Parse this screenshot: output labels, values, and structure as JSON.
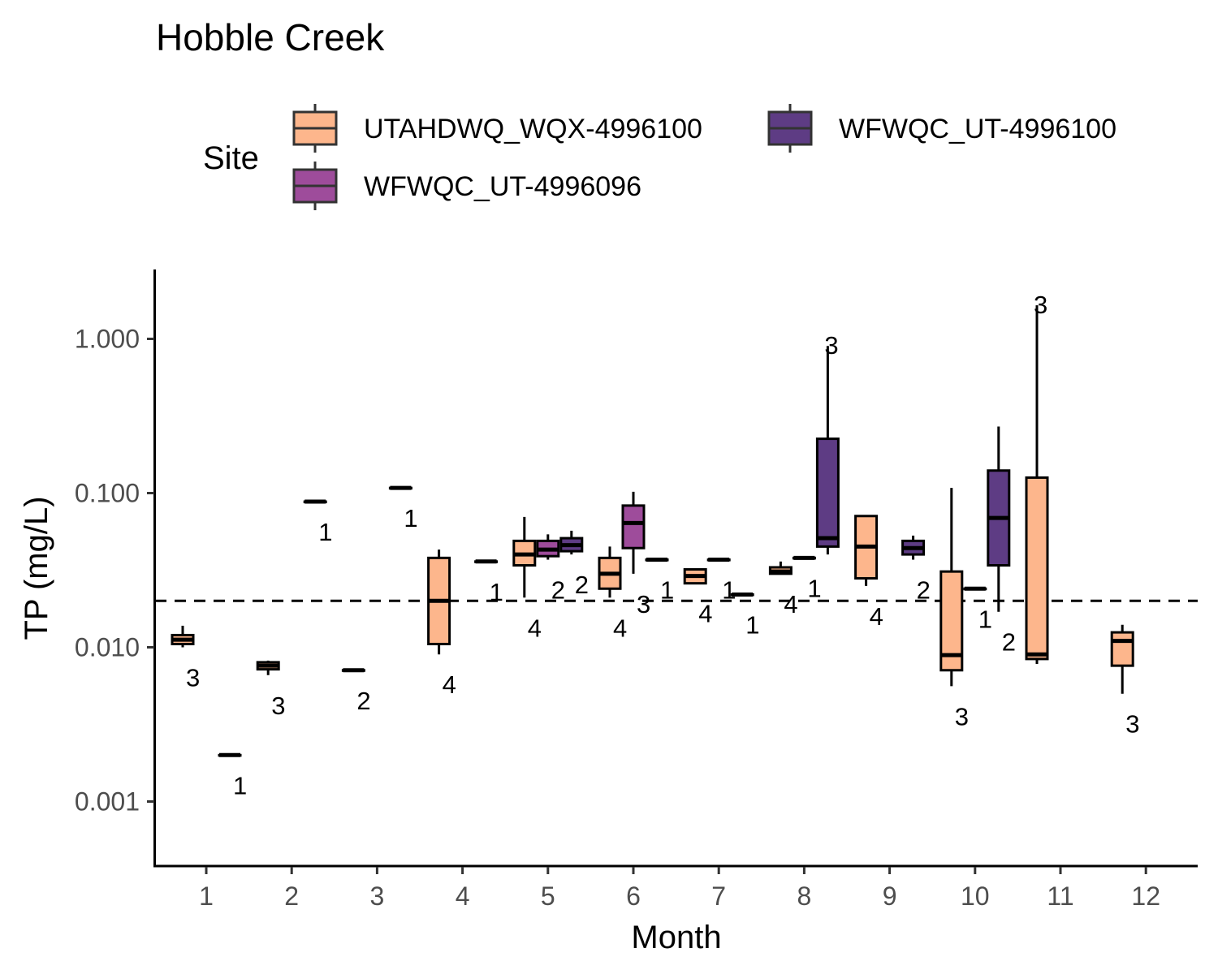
{
  "chart_data": {
    "type": "box",
    "title": "Hobble Creek",
    "xlabel": "Month",
    "ylabel": "TP (mg/L)",
    "y_scale": "log10",
    "ylim": [
      0.0004,
      2.8
    ],
    "x_categories": [
      "1",
      "2",
      "3",
      "4",
      "5",
      "6",
      "7",
      "8",
      "9",
      "10",
      "11",
      "12"
    ],
    "y_ticks": [
      0.001,
      0.01,
      0.1,
      1.0
    ],
    "y_tick_labels": [
      "0.001",
      "0.010",
      "0.100",
      "1.000"
    ],
    "reference_line": {
      "value": 0.02,
      "style": "dashed"
    },
    "legend": {
      "title": "Site",
      "placement": "top",
      "entries": [
        {
          "name": "UTAHDWQ_WQX-4996100",
          "color": "#FDB68C"
        },
        {
          "name": "WFWQC_UT-4996096",
          "color": "#9E4C9B"
        },
        {
          "name": "WFWQC_UT-4996100",
          "color": "#5E3C84"
        }
      ]
    },
    "boxes": [
      {
        "month": 1,
        "site": 0,
        "min": 0.01,
        "q1": 0.0105,
        "median": 0.0112,
        "q3": 0.012,
        "max": 0.0138,
        "n": "3"
      },
      {
        "month": 1,
        "site": 2,
        "min": 0.002,
        "q1": 0.002,
        "median": 0.002,
        "q3": 0.002,
        "max": 0.002,
        "n": "1"
      },
      {
        "month": 2,
        "site": 0,
        "min": 0.0066,
        "q1": 0.0072,
        "median": 0.0076,
        "q3": 0.008,
        "max": 0.0082,
        "n": "3"
      },
      {
        "month": 2,
        "site": 2,
        "min": 0.088,
        "q1": 0.088,
        "median": 0.088,
        "q3": 0.088,
        "max": 0.088,
        "n": "1"
      },
      {
        "month": 3,
        "site": 0,
        "min": 0.0071,
        "q1": 0.0071,
        "median": 0.0071,
        "q3": 0.0071,
        "max": 0.0071,
        "n": "2"
      },
      {
        "month": 3,
        "site": 2,
        "min": 0.108,
        "q1": 0.108,
        "median": 0.108,
        "q3": 0.108,
        "max": 0.108,
        "n": "1"
      },
      {
        "month": 4,
        "site": 0,
        "min": 0.009,
        "q1": 0.0105,
        "median": 0.02,
        "q3": 0.038,
        "max": 0.043,
        "n": "4"
      },
      {
        "month": 4,
        "site": 2,
        "min": 0.036,
        "q1": 0.036,
        "median": 0.036,
        "q3": 0.036,
        "max": 0.036,
        "n": "1"
      },
      {
        "month": 5,
        "site": 0,
        "min": 0.021,
        "q1": 0.034,
        "median": 0.04,
        "q3": 0.049,
        "max": 0.07,
        "n": "4"
      },
      {
        "month": 5,
        "site": 1,
        "min": 0.037,
        "q1": 0.039,
        "median": 0.043,
        "q3": 0.049,
        "max": 0.054,
        "n": "2"
      },
      {
        "month": 5,
        "site": 2,
        "min": 0.04,
        "q1": 0.042,
        "median": 0.046,
        "q3": 0.051,
        "max": 0.057,
        "n": "2"
      },
      {
        "month": 6,
        "site": 0,
        "min": 0.021,
        "q1": 0.024,
        "median": 0.03,
        "q3": 0.038,
        "max": 0.045,
        "n": "4"
      },
      {
        "month": 6,
        "site": 1,
        "min": 0.03,
        "q1": 0.044,
        "median": 0.064,
        "q3": 0.083,
        "max": 0.102,
        "n": "3"
      },
      {
        "month": 6,
        "site": 2,
        "min": 0.037,
        "q1": 0.037,
        "median": 0.037,
        "q3": 0.037,
        "max": 0.037,
        "n": "1"
      },
      {
        "month": 7,
        "site": 0,
        "min": 0.026,
        "q1": 0.026,
        "median": 0.029,
        "q3": 0.032,
        "max": 0.032,
        "n": "4"
      },
      {
        "month": 7,
        "site": 1,
        "min": 0.037,
        "q1": 0.037,
        "median": 0.037,
        "q3": 0.037,
        "max": 0.037,
        "n": "1"
      },
      {
        "month": 7,
        "site": 2,
        "min": 0.022,
        "q1": 0.022,
        "median": 0.022,
        "q3": 0.022,
        "max": 0.022,
        "n": "1"
      },
      {
        "month": 8,
        "site": 0,
        "min": 0.03,
        "q1": 0.03,
        "median": 0.031,
        "q3": 0.033,
        "max": 0.036,
        "n": "4"
      },
      {
        "month": 8,
        "site": 1,
        "min": 0.038,
        "q1": 0.038,
        "median": 0.038,
        "q3": 0.038,
        "max": 0.038,
        "n": "1"
      },
      {
        "month": 8,
        "site": 2,
        "min": 0.04,
        "q1": 0.045,
        "median": 0.051,
        "q3": 0.225,
        "max": 0.9,
        "n": "3"
      },
      {
        "month": 9,
        "site": 0,
        "min": 0.025,
        "q1": 0.028,
        "median": 0.045,
        "q3": 0.071,
        "max": 0.071,
        "n": "4"
      },
      {
        "month": 9,
        "site": 2,
        "min": 0.037,
        "q1": 0.04,
        "median": 0.044,
        "q3": 0.049,
        "max": 0.053,
        "n": "2"
      },
      {
        "month": 10,
        "site": 0,
        "min": 0.0056,
        "q1": 0.0071,
        "median": 0.0089,
        "q3": 0.031,
        "max": 0.108,
        "n": "3"
      },
      {
        "month": 10,
        "site": 2,
        "min": 0.017,
        "q1": 0.034,
        "median": 0.069,
        "q3": 0.14,
        "max": 0.27,
        "n": "2"
      },
      {
        "month": 10,
        "site": 1,
        "min": 0.024,
        "q1": 0.024,
        "median": 0.024,
        "q3": 0.024,
        "max": 0.024,
        "n": "1"
      },
      {
        "month": 11,
        "site": 0,
        "min": 0.0078,
        "q1": 0.0084,
        "median": 0.009,
        "q3": 0.126,
        "max": 1.65,
        "n": "3"
      },
      {
        "month": 12,
        "site": 0,
        "min": 0.005,
        "q1": 0.0076,
        "median": 0.011,
        "q3": 0.0125,
        "max": 0.014,
        "n": "3"
      }
    ]
  }
}
